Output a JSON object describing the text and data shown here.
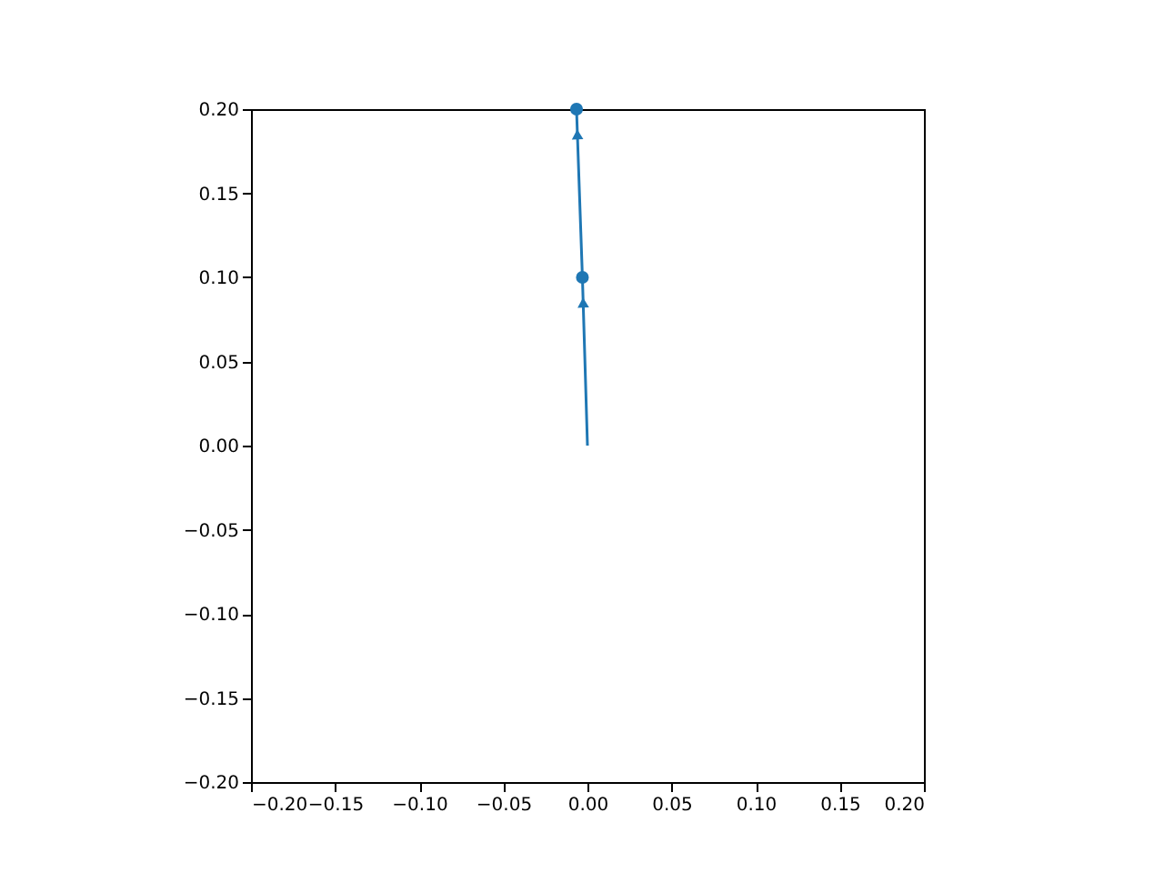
{
  "chart_data": {
    "type": "line",
    "xlim": [
      -0.2,
      0.2
    ],
    "ylim": [
      -0.2,
      0.2
    ],
    "xticks": [
      {
        "value": -0.2,
        "label": "−0.20"
      },
      {
        "value": -0.15,
        "label": "−0.15"
      },
      {
        "value": -0.1,
        "label": "−0.10"
      },
      {
        "value": -0.05,
        "label": "−0.05"
      },
      {
        "value": 0,
        "label": "0.00"
      },
      {
        "value": 0.05,
        "label": "0.05"
      },
      {
        "value": 0.1,
        "label": "0.10"
      },
      {
        "value": 0.15,
        "label": "0.15"
      },
      {
        "value": 0.2,
        "label": "0.20"
      }
    ],
    "yticks": [
      {
        "value": -0.2,
        "label": "−0.20"
      },
      {
        "value": -0.15,
        "label": "−0.15"
      },
      {
        "value": -0.1,
        "label": "−0.10"
      },
      {
        "value": -0.05,
        "label": "−0.05"
      },
      {
        "value": 0,
        "label": "0.00"
      },
      {
        "value": 0.05,
        "label": "0.05"
      },
      {
        "value": 0.1,
        "label": "0.10"
      },
      {
        "value": 0.15,
        "label": "0.15"
      },
      {
        "value": 0.2,
        "label": "0.20"
      }
    ],
    "series": [
      {
        "color": "#1f77b4",
        "x": [
          0,
          -0.003,
          -0.0065
        ],
        "values": [
          0,
          0.1,
          0.2
        ],
        "marker": "none"
      },
      {
        "type": "scatter",
        "color": "#1f77b4",
        "x": [
          -0.003,
          -0.0065
        ],
        "values": [
          0.1,
          0.2
        ],
        "marker": "circle"
      }
    ],
    "grid": false
  }
}
